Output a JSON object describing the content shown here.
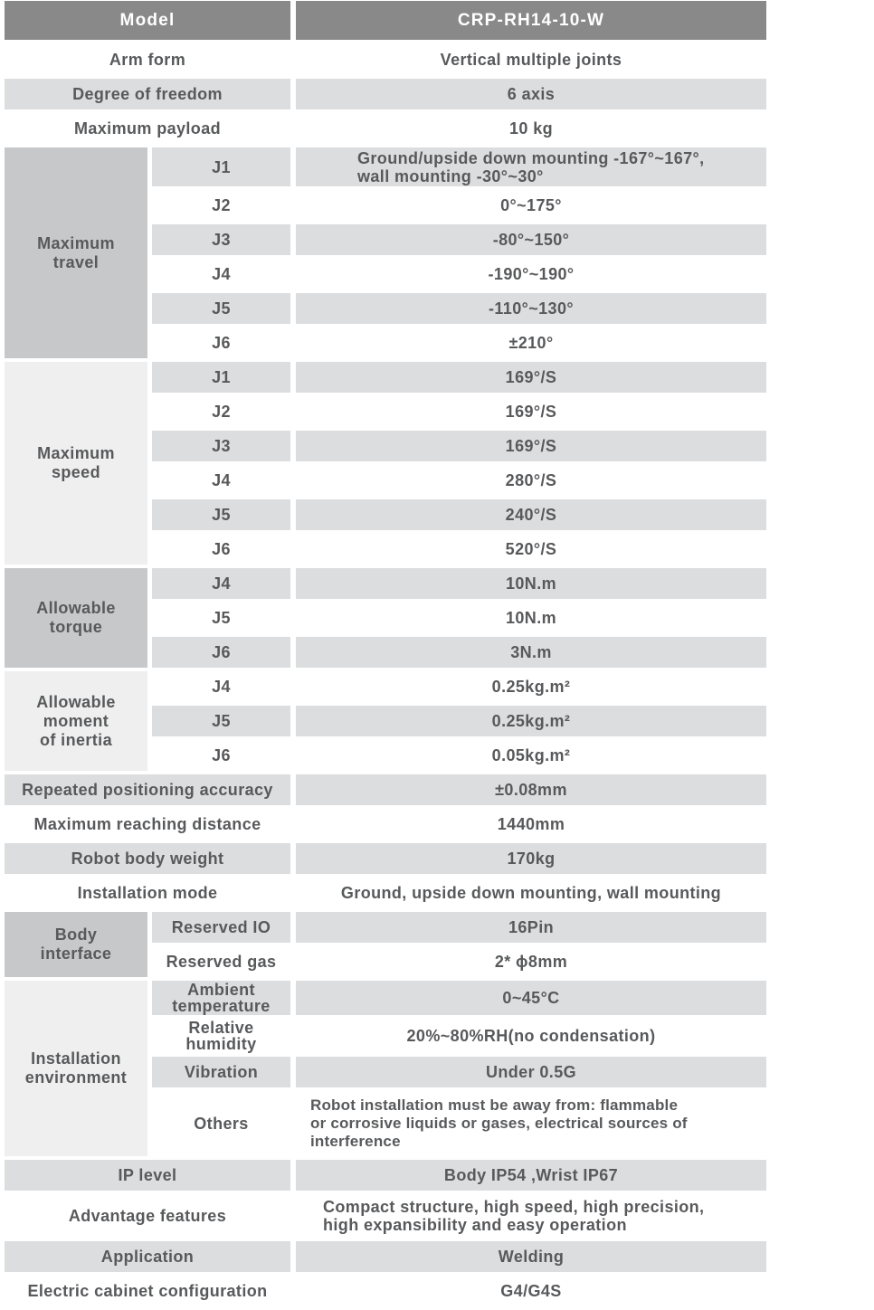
{
  "colors": {
    "header_bg": "#898989",
    "header_text": "#ffffff",
    "row_stripe": "#dcddde",
    "group_cell_dark": "#c6c8ca",
    "group_cell_light": "#efefef",
    "text": "#58595b",
    "page_bg": "#ffffff"
  },
  "header": {
    "label": "Model",
    "value": "CRP-RH14-10-W"
  },
  "top_rows": [
    {
      "label": "Arm form",
      "value": "Vertical multiple joints"
    },
    {
      "label": "Degree of freedom",
      "value": "6 axis"
    },
    {
      "label": "Maximum payload",
      "value": "10 kg"
    }
  ],
  "travel": {
    "label": "Maximum\ntravel",
    "rows": [
      {
        "joint": "J1",
        "value": "Ground/upside down mounting -167°~167°,\nwall mounting -30°~30°"
      },
      {
        "joint": "J2",
        "value": "0°~175°"
      },
      {
        "joint": "J3",
        "value": "-80°~150°"
      },
      {
        "joint": "J4",
        "value": "-190°~190°"
      },
      {
        "joint": "J5",
        "value": "-110°~130°"
      },
      {
        "joint": "J6",
        "value": "±210°"
      }
    ]
  },
  "speed": {
    "label": "Maximum\nspeed",
    "rows": [
      {
        "joint": "J1",
        "value": "169°/S"
      },
      {
        "joint": "J2",
        "value": "169°/S"
      },
      {
        "joint": "J3",
        "value": "169°/S"
      },
      {
        "joint": "J4",
        "value": "280°/S"
      },
      {
        "joint": "J5",
        "value": "240°/S"
      },
      {
        "joint": "J6",
        "value": "520°/S"
      }
    ]
  },
  "torque": {
    "label": "Allowable\ntorque",
    "rows": [
      {
        "joint": "J4",
        "value": "10N.m"
      },
      {
        "joint": "J5",
        "value": "10N.m"
      },
      {
        "joint": "J6",
        "value": "3N.m"
      }
    ]
  },
  "inertia": {
    "label": "Allowable\nmoment\nof inertia",
    "rows": [
      {
        "joint": "J4",
        "value": "0.25kg.m²"
      },
      {
        "joint": "J5",
        "value": "0.25kg.m²"
      },
      {
        "joint": "J6",
        "value": "0.05kg.m²"
      }
    ]
  },
  "mid_rows": [
    {
      "label": "Repeated positioning accuracy",
      "value": "±0.08mm"
    },
    {
      "label": "Maximum reaching distance",
      "value": "1440mm"
    },
    {
      "label": "Robot body weight",
      "value": "170kg"
    },
    {
      "label": "Installation mode",
      "value": "Ground, upside down mounting, wall mounting"
    }
  ],
  "body_interface": {
    "label": "Body\ninterface",
    "rows": [
      {
        "sub": "Reserved IO",
        "value": "16Pin"
      },
      {
        "sub": "Reserved gas",
        "value": "2* ϕ8mm"
      }
    ]
  },
  "environment": {
    "label": "Installation\nenvironment",
    "rows": [
      {
        "sub": "Ambient\ntemperature",
        "value": "0~45°C"
      },
      {
        "sub": "Relative\nhumidity",
        "value": "20%~80%RH(no condensation)"
      },
      {
        "sub": "Vibration",
        "value": "Under 0.5G"
      },
      {
        "sub": "Others",
        "value": "Robot installation must be away from: flammable\nor corrosive liquids or gases, electrical sources of\ninterference"
      }
    ]
  },
  "bottom_rows": [
    {
      "label": "IP level",
      "value": "Body IP54 ,Wrist IP67"
    },
    {
      "label": "Advantage features",
      "value": "Compact structure, high speed, high precision,\nhigh expansibility and easy operation"
    },
    {
      "label": "Application",
      "value": "Welding"
    },
    {
      "label": "Electric cabinet configuration",
      "value": "G4/G4S"
    }
  ]
}
